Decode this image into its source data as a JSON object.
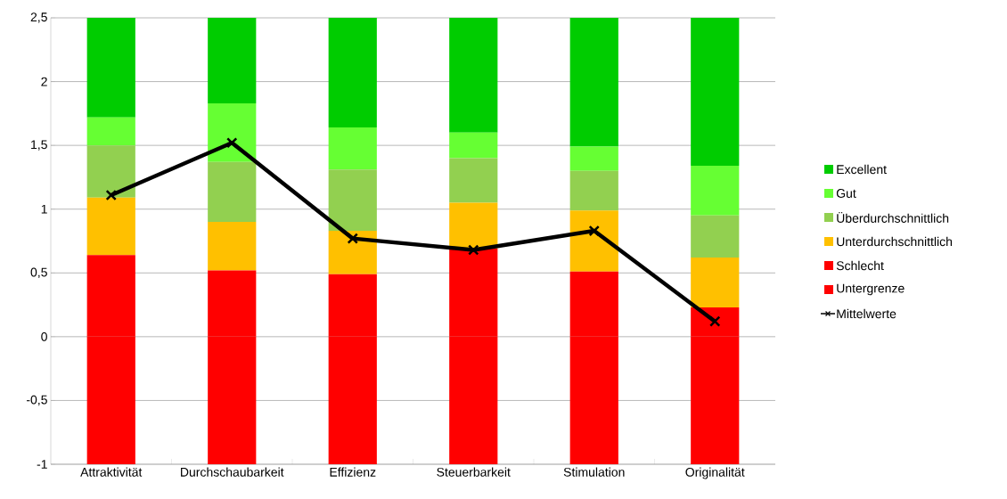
{
  "chart_data": {
    "type": "bar",
    "stacked": true,
    "categories": [
      "Attraktivität",
      "Durchschaubarkeit",
      "Effizienz",
      "Steuerbarkeit",
      "Stimulation",
      "Originalität"
    ],
    "series": [
      {
        "name": "Untergrenze",
        "color": "#ff0000",
        "values": [
          -1,
          -1,
          -1,
          -1,
          -1,
          -1
        ]
      },
      {
        "name": "Schlecht",
        "color": "#ff0000",
        "values": [
          0.64,
          0.52,
          0.49,
          0.69,
          0.51,
          0.23
        ]
      },
      {
        "name": "Unterdurchschnittlich",
        "color": "#ffc000",
        "values": [
          0.45,
          0.38,
          0.34,
          0.36,
          0.48,
          0.39
        ]
      },
      {
        "name": "Überdurchschnittlich",
        "color": "#92d050",
        "values": [
          0.41,
          0.47,
          0.48,
          0.35,
          0.31,
          0.33
        ]
      },
      {
        "name": "Gut",
        "color": "#66ff33",
        "values": [
          0.22,
          0.46,
          0.33,
          0.2,
          0.19,
          0.39
        ]
      },
      {
        "name": "Excellent",
        "color": "#00cc00",
        "values": [
          0.78,
          0.67,
          0.86,
          0.9,
          1.01,
          1.16
        ]
      },
      {
        "name": "Mittelwerte",
        "type": "line",
        "color": "#000000",
        "marker": "cross",
        "values": [
          1.11,
          1.52,
          0.77,
          0.68,
          0.83,
          0.12
        ]
      }
    ],
    "ylim": [
      -1,
      2.5
    ],
    "yticks": [
      -1,
      {
        "value": -0.5,
        "label": "-0,5"
      },
      0,
      {
        "value": 0.5,
        "label": "0,5"
      },
      1,
      {
        "value": 1.5,
        "label": "1,5"
      },
      2,
      {
        "value": 2.5,
        "label": "2,5"
      }
    ],
    "grid": "y",
    "legend": "right"
  }
}
